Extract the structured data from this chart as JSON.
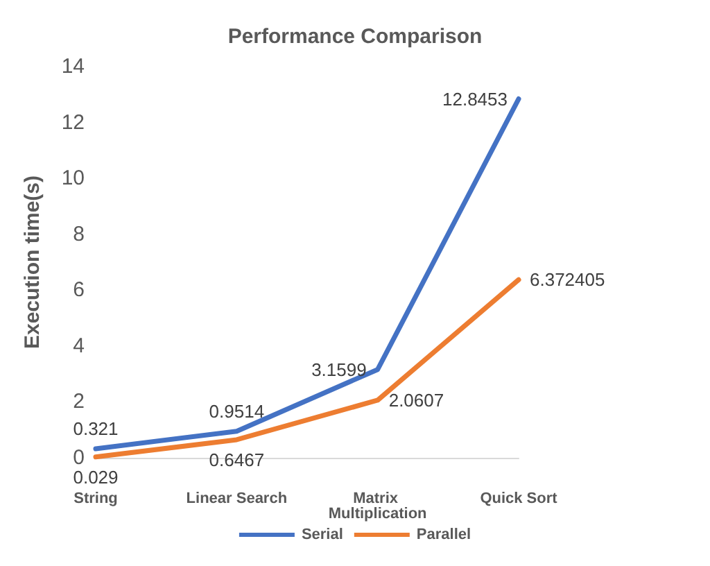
{
  "chart_data": {
    "type": "line",
    "title": "Performance Comparison",
    "ylabel": "Execution time(s)",
    "categories": [
      "String",
      "Linear Search",
      "Matrix Multiplication",
      "Quick Sort"
    ],
    "series": [
      {
        "name": "Serial",
        "color": "#4472c4",
        "values": [
          0.321,
          0.9514,
          3.1599,
          12.8453
        ]
      },
      {
        "name": "Parallel",
        "color": "#ed7d31",
        "values": [
          0.029,
          0.6467,
          2.0607,
          6.372405
        ]
      }
    ],
    "ylim": [
      0,
      14
    ],
    "yticks": [
      0,
      2,
      4,
      6,
      8,
      10,
      12,
      14
    ],
    "data_labels": true,
    "legend": "bottom",
    "grid": false,
    "marker": "none",
    "line_style": "solid"
  }
}
